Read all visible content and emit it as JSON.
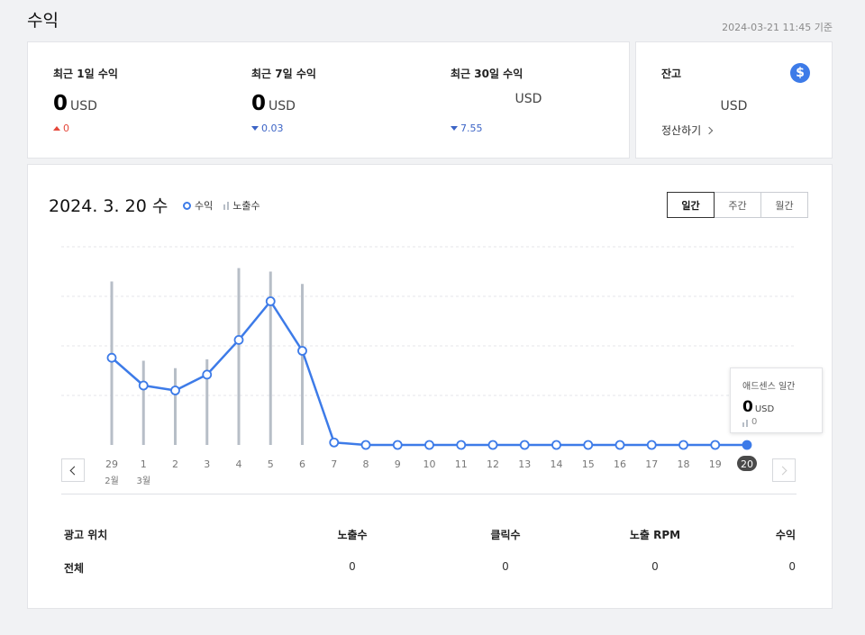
{
  "page": {
    "title": "수익",
    "timestamp": "2024-03-21 11:45 기준"
  },
  "summary": [
    {
      "label": "최근 1일 수익",
      "value": "0",
      "unit": "USD",
      "change": "0",
      "direction": "up"
    },
    {
      "label": "최근 7일 수익",
      "value": "0",
      "unit": "USD",
      "change": "0.03",
      "direction": "down"
    },
    {
      "label": "최근 30일 수익",
      "value": "",
      "unit": "USD",
      "change": "7.55",
      "direction": "down"
    }
  ],
  "balance": {
    "label": "잔고",
    "icon": "dollar-icon",
    "icon_glyph": "$",
    "unit": "USD",
    "settle_label": "정산하기"
  },
  "chart": {
    "date_label": "2024. 3. 20 수",
    "legend_revenue": "수익",
    "legend_impressions": "노출수",
    "tabs": [
      "일간",
      "주간",
      "월간"
    ],
    "active_tab": "일간",
    "tooltip": {
      "title": "애드센스 일간",
      "value": "0",
      "unit": "USD",
      "impressions": "0"
    },
    "colors": {
      "line": "#3d7be8",
      "bars": "#b7bec7",
      "grid": "#e4e6ea",
      "selected_badge": "#4a4a4a"
    }
  },
  "chart_data": {
    "type": "line",
    "x": [
      "29",
      "1",
      "2",
      "3",
      "4",
      "5",
      "6",
      "7",
      "8",
      "9",
      "10",
      "11",
      "12",
      "13",
      "14",
      "15",
      "16",
      "17",
      "18",
      "19",
      "20"
    ],
    "month_labels": [
      {
        "index": 0,
        "text": "2월"
      },
      {
        "index": 1,
        "text": "3월"
      }
    ],
    "selected_index": 20,
    "series": [
      {
        "name": "수익",
        "kind": "line",
        "values": [
          1.76,
          1.2,
          1.1,
          1.42,
          2.12,
          2.9,
          1.9,
          0.05,
          0,
          0,
          0,
          0,
          0,
          0,
          0,
          0,
          0,
          0,
          0,
          0,
          0
        ]
      },
      {
        "name": "노출수",
        "kind": "bar",
        "values": [
          3.3,
          1.7,
          1.55,
          1.73,
          3.57,
          3.5,
          3.25,
          0,
          0,
          0,
          0,
          0,
          0,
          0,
          0,
          0,
          0,
          0,
          0,
          0,
          0
        ]
      }
    ],
    "ylim": [
      0,
      4
    ],
    "grid": true
  },
  "table": {
    "headers": [
      "광고 위치",
      "노출수",
      "클릭수",
      "노출 RPM",
      "수익"
    ],
    "rows": [
      [
        "전체",
        "0",
        "0",
        "0",
        "0"
      ]
    ]
  }
}
